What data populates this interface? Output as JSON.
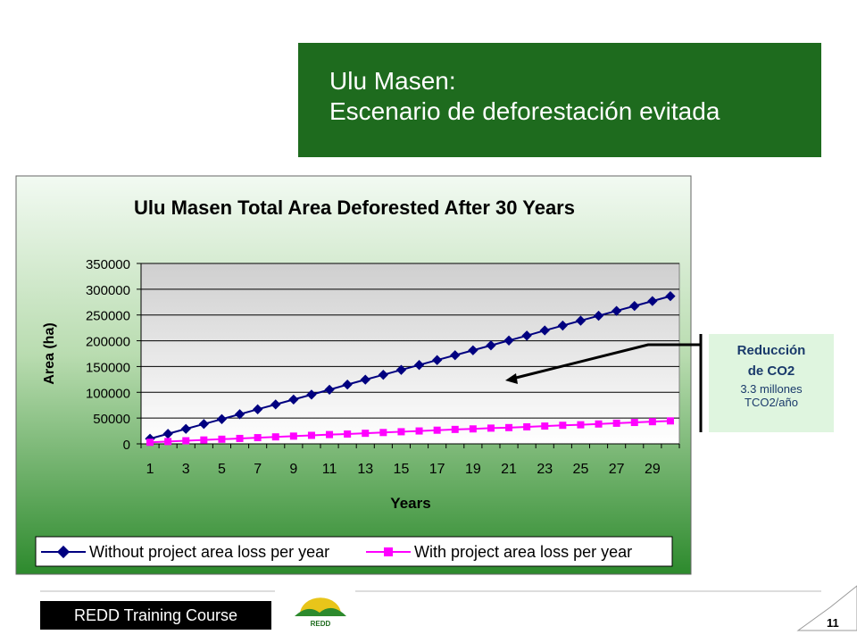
{
  "slide": {
    "title_line1": "Ulu Masen:",
    "title_line2": "Escenario de deforestación evitada",
    "footer_label": "REDD Training Course",
    "logo_text": "REDD",
    "page_number": "11",
    "callout": {
      "line1": "Reducción",
      "line2": "de CO2",
      "line3": "3.3 millones",
      "line4": "TCO2/año"
    },
    "colors": {
      "title_bg": "#1e6b1e",
      "series1": "#000080",
      "series2": "#ff00ff",
      "callout_bg": "#dff5df"
    }
  },
  "chart_data": {
    "type": "line",
    "title": "Ulu Masen Total Area Deforested After 30 Years",
    "xlabel": "Years",
    "ylabel": "Area (ha)",
    "ylim": [
      0,
      350000
    ],
    "yticks": [
      0,
      50000,
      100000,
      150000,
      200000,
      250000,
      300000,
      350000
    ],
    "xtick_labels": [
      "1",
      "3",
      "5",
      "7",
      "9",
      "11",
      "13",
      "15",
      "17",
      "19",
      "21",
      "23",
      "25",
      "27",
      "29"
    ],
    "legend_position": "bottom",
    "grid": true,
    "x": [
      1,
      2,
      3,
      4,
      5,
      6,
      7,
      8,
      9,
      10,
      11,
      12,
      13,
      14,
      15,
      16,
      17,
      18,
      19,
      20,
      21,
      22,
      23,
      24,
      25,
      26,
      27,
      28,
      29,
      30
    ],
    "series": [
      {
        "name": "Without project area loss per year",
        "color": "#000080",
        "marker": "diamond",
        "values": [
          10000,
          19500,
          29000,
          38500,
          48000,
          57500,
          67000,
          76500,
          86000,
          95500,
          105000,
          115000,
          124500,
          134000,
          143500,
          153000,
          162500,
          172000,
          181500,
          191000,
          200500,
          210000,
          220000,
          229500,
          239000,
          248500,
          258000,
          267500,
          277000,
          286500
        ]
      },
      {
        "name": "With project area loss per year",
        "color": "#ff00ff",
        "marker": "square",
        "values": [
          3000,
          4500,
          6000,
          7500,
          9000,
          10500,
          12000,
          13500,
          15000,
          16500,
          18000,
          19000,
          20500,
          22000,
          23500,
          25000,
          26500,
          28000,
          29000,
          30500,
          31500,
          33000,
          34500,
          36000,
          37000,
          38500,
          40000,
          41500,
          43000,
          44500
        ]
      }
    ]
  }
}
